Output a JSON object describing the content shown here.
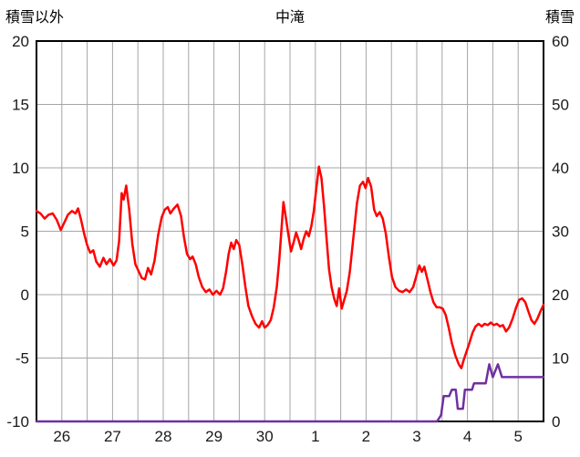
{
  "chart_data": {
    "type": "line",
    "title": "中滝",
    "grid": true,
    "grid_color": "#a6a6a6",
    "border_color": "#000000",
    "background_color": "#ffffff",
    "left_axis": {
      "label": "積雪以外",
      "min": -10,
      "max": 20,
      "ticks": [
        -10,
        -5,
        0,
        5,
        10,
        15,
        20
      ]
    },
    "right_axis": {
      "label": "積雪",
      "min": 0,
      "max": 60,
      "ticks": [
        0,
        10,
        20,
        30,
        40,
        50,
        60
      ]
    },
    "x_axis": {
      "min": 0,
      "max": 10,
      "gridline_interval_days": 0.5,
      "day_labels": [
        "26",
        "27",
        "28",
        "29",
        "30",
        "1",
        "2",
        "3",
        "4",
        "5"
      ]
    },
    "series": [
      {
        "name": "積雪以外",
        "axis": "left",
        "color": "#ff0000",
        "points": [
          [
            0.0,
            6.6
          ],
          [
            0.08,
            6.4
          ],
          [
            0.16,
            6.0
          ],
          [
            0.24,
            6.3
          ],
          [
            0.32,
            6.4
          ],
          [
            0.4,
            5.9
          ],
          [
            0.48,
            5.1
          ],
          [
            0.55,
            5.7
          ],
          [
            0.62,
            6.3
          ],
          [
            0.7,
            6.6
          ],
          [
            0.77,
            6.4
          ],
          [
            0.82,
            6.8
          ],
          [
            0.88,
            5.9
          ],
          [
            0.94,
            4.8
          ],
          [
            1.0,
            3.9
          ],
          [
            1.06,
            3.3
          ],
          [
            1.12,
            3.5
          ],
          [
            1.18,
            2.6
          ],
          [
            1.25,
            2.2
          ],
          [
            1.32,
            2.9
          ],
          [
            1.38,
            2.4
          ],
          [
            1.45,
            2.8
          ],
          [
            1.52,
            2.3
          ],
          [
            1.58,
            2.7
          ],
          [
            1.63,
            4.2
          ],
          [
            1.68,
            8.0
          ],
          [
            1.72,
            7.5
          ],
          [
            1.77,
            8.6
          ],
          [
            1.83,
            6.7
          ],
          [
            1.89,
            4.0
          ],
          [
            1.95,
            2.4
          ],
          [
            2.02,
            1.8
          ],
          [
            2.08,
            1.3
          ],
          [
            2.14,
            1.2
          ],
          [
            2.2,
            2.1
          ],
          [
            2.26,
            1.6
          ],
          [
            2.33,
            2.7
          ],
          [
            2.4,
            4.7
          ],
          [
            2.47,
            6.1
          ],
          [
            2.53,
            6.7
          ],
          [
            2.59,
            6.9
          ],
          [
            2.64,
            6.4
          ],
          [
            2.71,
            6.8
          ],
          [
            2.78,
            7.1
          ],
          [
            2.85,
            6.2
          ],
          [
            2.91,
            4.5
          ],
          [
            2.97,
            3.2
          ],
          [
            3.03,
            2.8
          ],
          [
            3.08,
            3.0
          ],
          [
            3.14,
            2.4
          ],
          [
            3.2,
            1.4
          ],
          [
            3.27,
            0.6
          ],
          [
            3.34,
            0.2
          ],
          [
            3.41,
            0.4
          ],
          [
            3.48,
            0.0
          ],
          [
            3.55,
            0.3
          ],
          [
            3.62,
            0.0
          ],
          [
            3.68,
            0.5
          ],
          [
            3.74,
            1.8
          ],
          [
            3.79,
            3.2
          ],
          [
            3.84,
            4.1
          ],
          [
            3.89,
            3.6
          ],
          [
            3.94,
            4.3
          ],
          [
            4.0,
            3.9
          ],
          [
            4.06,
            2.4
          ],
          [
            4.12,
            0.6
          ],
          [
            4.18,
            -0.9
          ],
          [
            4.25,
            -1.7
          ],
          [
            4.32,
            -2.3
          ],
          [
            4.39,
            -2.6
          ],
          [
            4.45,
            -2.1
          ],
          [
            4.5,
            -2.6
          ],
          [
            4.56,
            -2.4
          ],
          [
            4.62,
            -2.0
          ],
          [
            4.68,
            -1.0
          ],
          [
            4.74,
            0.6
          ],
          [
            4.79,
            2.8
          ],
          [
            4.83,
            5.0
          ],
          [
            4.87,
            7.3
          ],
          [
            4.92,
            6.0
          ],
          [
            4.97,
            4.7
          ],
          [
            5.02,
            3.4
          ],
          [
            5.07,
            4.1
          ],
          [
            5.12,
            4.9
          ],
          [
            5.17,
            4.3
          ],
          [
            5.22,
            3.6
          ],
          [
            5.27,
            4.4
          ],
          [
            5.32,
            5.0
          ],
          [
            5.37,
            4.6
          ],
          [
            5.42,
            5.4
          ],
          [
            5.47,
            6.6
          ],
          [
            5.52,
            8.4
          ],
          [
            5.57,
            10.1
          ],
          [
            5.62,
            9.2
          ],
          [
            5.67,
            7.0
          ],
          [
            5.72,
            4.5
          ],
          [
            5.77,
            2.0
          ],
          [
            5.82,
            0.6
          ],
          [
            5.87,
            -0.3
          ],
          [
            5.92,
            -0.9
          ],
          [
            5.97,
            0.5
          ],
          [
            6.02,
            -1.1
          ],
          [
            6.07,
            -0.4
          ],
          [
            6.12,
            0.3
          ],
          [
            6.18,
            1.8
          ],
          [
            6.25,
            4.5
          ],
          [
            6.32,
            7.2
          ],
          [
            6.38,
            8.6
          ],
          [
            6.44,
            8.9
          ],
          [
            6.49,
            8.4
          ],
          [
            6.54,
            9.2
          ],
          [
            6.6,
            8.5
          ],
          [
            6.66,
            6.7
          ],
          [
            6.71,
            6.2
          ],
          [
            6.77,
            6.5
          ],
          [
            6.83,
            6.0
          ],
          [
            6.89,
            4.8
          ],
          [
            6.95,
            3.0
          ],
          [
            7.01,
            1.4
          ],
          [
            7.08,
            0.6
          ],
          [
            7.15,
            0.3
          ],
          [
            7.22,
            0.2
          ],
          [
            7.29,
            0.4
          ],
          [
            7.36,
            0.2
          ],
          [
            7.43,
            0.6
          ],
          [
            7.5,
            1.6
          ],
          [
            7.55,
            2.3
          ],
          [
            7.6,
            1.8
          ],
          [
            7.65,
            2.2
          ],
          [
            7.71,
            1.2
          ],
          [
            7.77,
            0.2
          ],
          [
            7.83,
            -0.6
          ],
          [
            7.89,
            -1.0
          ],
          [
            7.95,
            -1.0
          ],
          [
            8.01,
            -1.1
          ],
          [
            8.07,
            -1.6
          ],
          [
            8.13,
            -2.6
          ],
          [
            8.19,
            -3.8
          ],
          [
            8.26,
            -4.8
          ],
          [
            8.33,
            -5.5
          ],
          [
            8.38,
            -5.8
          ],
          [
            8.43,
            -5.1
          ],
          [
            8.48,
            -4.5
          ],
          [
            8.54,
            -3.8
          ],
          [
            8.6,
            -3.0
          ],
          [
            8.66,
            -2.5
          ],
          [
            8.72,
            -2.3
          ],
          [
            8.78,
            -2.5
          ],
          [
            8.84,
            -2.3
          ],
          [
            8.9,
            -2.4
          ],
          [
            8.96,
            -2.2
          ],
          [
            9.02,
            -2.4
          ],
          [
            9.08,
            -2.3
          ],
          [
            9.14,
            -2.5
          ],
          [
            9.2,
            -2.4
          ],
          [
            9.26,
            -2.9
          ],
          [
            9.32,
            -2.6
          ],
          [
            9.39,
            -1.9
          ],
          [
            9.46,
            -1.0
          ],
          [
            9.52,
            -0.4
          ],
          [
            9.58,
            -0.3
          ],
          [
            9.64,
            -0.6
          ],
          [
            9.7,
            -1.3
          ],
          [
            9.76,
            -2.0
          ],
          [
            9.82,
            -2.3
          ],
          [
            9.88,
            -1.9
          ],
          [
            9.94,
            -1.3
          ],
          [
            10.0,
            -0.8
          ]
        ]
      },
      {
        "name": "積雪",
        "axis": "right",
        "color": "#7030a0",
        "points": [
          [
            0.0,
            0
          ],
          [
            7.9,
            0
          ],
          [
            7.98,
            1
          ],
          [
            8.03,
            4
          ],
          [
            8.14,
            4
          ],
          [
            8.19,
            5
          ],
          [
            8.27,
            5
          ],
          [
            8.31,
            2
          ],
          [
            8.41,
            2
          ],
          [
            8.45,
            5
          ],
          [
            8.59,
            5
          ],
          [
            8.63,
            6
          ],
          [
            8.86,
            6
          ],
          [
            8.93,
            9
          ],
          [
            9.0,
            7
          ],
          [
            9.1,
            9
          ],
          [
            9.18,
            7
          ],
          [
            10.0,
            7
          ]
        ]
      }
    ]
  }
}
